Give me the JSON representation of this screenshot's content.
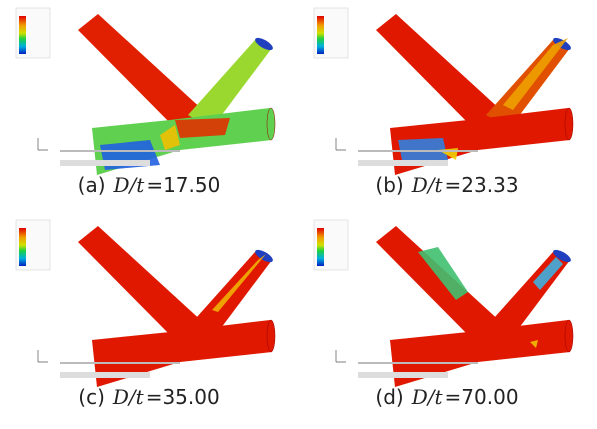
{
  "panels": [
    {
      "label": "(a)",
      "math": "D/t",
      "value": "=17.50"
    },
    {
      "label": "(b)",
      "math": "D/t",
      "value": "=23.33"
    },
    {
      "label": "(c)",
      "math": "D/t",
      "value": "=35.00"
    },
    {
      "label": "(d)",
      "math": "D/t",
      "value": "=70.00"
    }
  ]
}
